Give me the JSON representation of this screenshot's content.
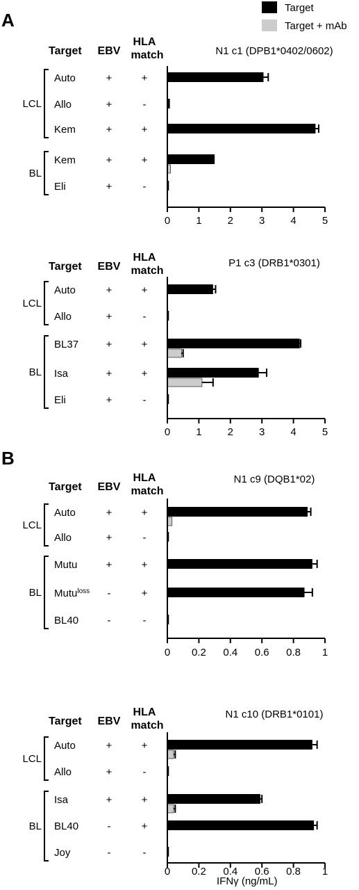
{
  "legend": [
    {
      "label": "Target",
      "color": "#000000"
    },
    {
      "label": "Target + mAb",
      "color": "#cccccc"
    }
  ],
  "panel_labels": [
    "A",
    "B"
  ],
  "headers": {
    "target": "Target",
    "ebv": "EBV",
    "hla_line1": "HLA",
    "hla_line2": "match"
  },
  "x_axis_label": "IFNγ (ng/mL)",
  "chart_data": [
    {
      "type": "bar",
      "title": "N1 c1 (DPB1*0402/0602)",
      "xlim": [
        0,
        5
      ],
      "xticks": [
        "0",
        "1",
        "2",
        "3",
        "4",
        "5"
      ],
      "groups": [
        {
          "label": "LCL",
          "rows": [
            0,
            2
          ]
        },
        {
          "label": "BL",
          "rows": [
            3,
            4
          ]
        }
      ],
      "rows": [
        {
          "target": "Auto",
          "ebv": "+",
          "hla": "+"
        },
        {
          "target": "Allo",
          "ebv": "+",
          "hla": "-"
        },
        {
          "target": "Kem",
          "ebv": "+",
          "hla": "+"
        },
        {
          "target": "Kem",
          "ebv": "+",
          "hla": "+"
        },
        {
          "target": "Eli",
          "ebv": "+",
          "hla": "-"
        }
      ],
      "series": [
        {
          "name": "Target",
          "values": [
            3.05,
            0.08,
            4.7,
            1.5,
            0.05
          ],
          "errors": [
            0.15,
            0,
            0.1,
            0,
            0
          ]
        },
        {
          "name": "Target + mAb",
          "values": [
            0,
            0,
            0,
            0.1,
            0
          ],
          "errors": [
            0,
            0,
            0,
            0,
            0
          ]
        }
      ]
    },
    {
      "type": "bar",
      "title": "P1 c3 (DRB1*0301)",
      "xlim": [
        0,
        5
      ],
      "xticks": [
        "0",
        "1",
        "2",
        "3",
        "4",
        "5"
      ],
      "groups": [
        {
          "label": "LCL",
          "rows": [
            0,
            1
          ]
        },
        {
          "label": "BL",
          "rows": [
            2,
            4
          ]
        }
      ],
      "rows": [
        {
          "target": "Auto",
          "ebv": "+",
          "hla": "+"
        },
        {
          "target": "Allo",
          "ebv": "+",
          "hla": "-"
        },
        {
          "target": "BL37",
          "ebv": "+",
          "hla": "+"
        },
        {
          "target": "Isa",
          "ebv": "+",
          "hla": "+"
        },
        {
          "target": "Eli",
          "ebv": "+",
          "hla": "-"
        }
      ],
      "series": [
        {
          "name": "Target",
          "values": [
            1.45,
            0.05,
            4.2,
            2.9,
            0.05
          ],
          "errors": [
            0.08,
            0,
            0.03,
            0.25,
            0
          ]
        },
        {
          "name": "Target + mAb",
          "values": [
            0,
            0,
            0.45,
            1.1,
            0
          ],
          "errors": [
            0,
            0,
            0.05,
            0.35,
            0
          ]
        }
      ]
    },
    {
      "type": "bar",
      "title": "N1 c9 (DQB1*02)",
      "xlim": [
        0,
        1
      ],
      "xticks": [
        "0",
        "0.2",
        "0.4",
        "0.6",
        "0.8",
        "1"
      ],
      "groups": [
        {
          "label": "LCL",
          "rows": [
            0,
            1
          ]
        },
        {
          "label": "BL",
          "rows": [
            2,
            4
          ]
        }
      ],
      "rows": [
        {
          "target": "Auto",
          "ebv": "+",
          "hla": "+"
        },
        {
          "target": "Allo",
          "ebv": "+",
          "hla": "-"
        },
        {
          "target": "Mutu",
          "ebv": "+",
          "hla": "+"
        },
        {
          "target": "Mutu",
          "target_sup": "loss",
          "ebv": "-",
          "hla": "+"
        },
        {
          "target": "BL40",
          "ebv": "-",
          "hla": "-"
        }
      ],
      "series": [
        {
          "name": "Target",
          "values": [
            0.89,
            0.01,
            0.92,
            0.87,
            0.01
          ],
          "errors": [
            0.02,
            0,
            0.03,
            0.05,
            0
          ]
        },
        {
          "name": "Target + mAb",
          "values": [
            0.03,
            0,
            0,
            0,
            0
          ],
          "errors": [
            0,
            0,
            0,
            0,
            0
          ]
        }
      ]
    },
    {
      "type": "bar",
      "title": "N1 c10 (DRB1*0101)",
      "xlim": [
        0,
        1
      ],
      "xticks": [
        "0",
        "0.2",
        "0.4",
        "0.6",
        "0.8",
        "1"
      ],
      "groups": [
        {
          "label": "LCL",
          "rows": [
            0,
            1
          ]
        },
        {
          "label": "BL",
          "rows": [
            2,
            4
          ]
        }
      ],
      "rows": [
        {
          "target": "Auto",
          "ebv": "+",
          "hla": "+"
        },
        {
          "target": "Allo",
          "ebv": "+",
          "hla": "-"
        },
        {
          "target": "Isa",
          "ebv": "+",
          "hla": "+"
        },
        {
          "target": "BL40",
          "ebv": "-",
          "hla": "+"
        },
        {
          "target": "Joy",
          "ebv": "-",
          "hla": "-"
        }
      ],
      "series": [
        {
          "name": "Target",
          "values": [
            0.92,
            0.01,
            0.59,
            0.93,
            0.01
          ],
          "errors": [
            0.03,
            0,
            0.01,
            0.02,
            0
          ]
        },
        {
          "name": "Target + mAb",
          "values": [
            0.04,
            0,
            0.04,
            0,
            0
          ],
          "errors": [
            0.01,
            0,
            0.01,
            0,
            0
          ]
        }
      ]
    }
  ]
}
